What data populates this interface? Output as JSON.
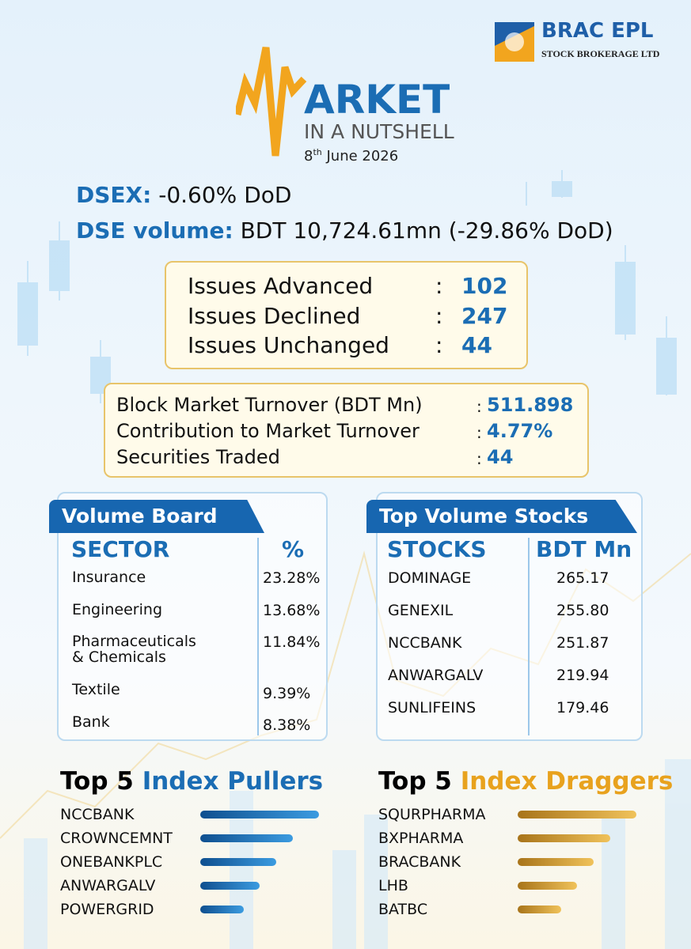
{
  "logo": {
    "name": "BRAC EPL",
    "tagline": "STOCK BROKERAGE LTD"
  },
  "header": {
    "title": "ARKET",
    "subtitle": "IN A NUTSHELL",
    "date_day": "8",
    "date_suffix": "th",
    "date_rest": "June 2026"
  },
  "summary": {
    "dsex_label": "DSEX:",
    "dsex_value": "-0.60% DoD",
    "volume_label": "DSE volume:",
    "volume_value": "BDT 10,724.61mn (-29.86% DoD)"
  },
  "separator": ":",
  "issues": [
    {
      "label": "Issues Advanced",
      "value": "102"
    },
    {
      "label": "Issues Declined",
      "value": "247"
    },
    {
      "label": "Issues Unchanged",
      "value": "44"
    }
  ],
  "block": [
    {
      "label": "Block Market Turnover (BDT Mn)",
      "value": "511.898"
    },
    {
      "label": "Contribution to Market Turnover",
      "value": "4.77%"
    },
    {
      "label": "Securities Traded",
      "value": "44"
    }
  ],
  "volume_board": {
    "title": "Volume Board",
    "columns": [
      "SECTOR",
      "%"
    ],
    "rows": [
      [
        "Insurance",
        "23.28%"
      ],
      [
        "Engineering",
        "13.68%"
      ],
      [
        "Pharmaceuticals & Chemicals",
        "11.84%"
      ],
      [
        "Textile",
        "9.39%"
      ],
      [
        "Bank",
        "8.38%"
      ]
    ]
  },
  "top_volume": {
    "title": "Top Volume Stocks",
    "columns": [
      "STOCKS",
      "BDT Mn"
    ],
    "rows": [
      [
        "DOMINAGE",
        "265.17"
      ],
      [
        "GENEXIL",
        "255.80"
      ],
      [
        "NCCBANK",
        "251.87"
      ],
      [
        "ANWARGALV",
        "219.94"
      ],
      [
        "SUNLIFEINS",
        "179.46"
      ]
    ]
  },
  "pullers": {
    "title_prefix": "Top 5",
    "title_highlight": "Index Pullers",
    "items": [
      "NCCBANK",
      "CROWNCEMNT",
      "ONEBANKPLC",
      "ANWARGALV",
      "POWERGRID"
    ]
  },
  "draggers": {
    "title_prefix": "Top 5",
    "title_highlight": "Index Draggers",
    "items": [
      "SQURPHARMA",
      "BXPHARMA",
      "BRACBANK",
      "LHB",
      "BATBC"
    ]
  }
}
